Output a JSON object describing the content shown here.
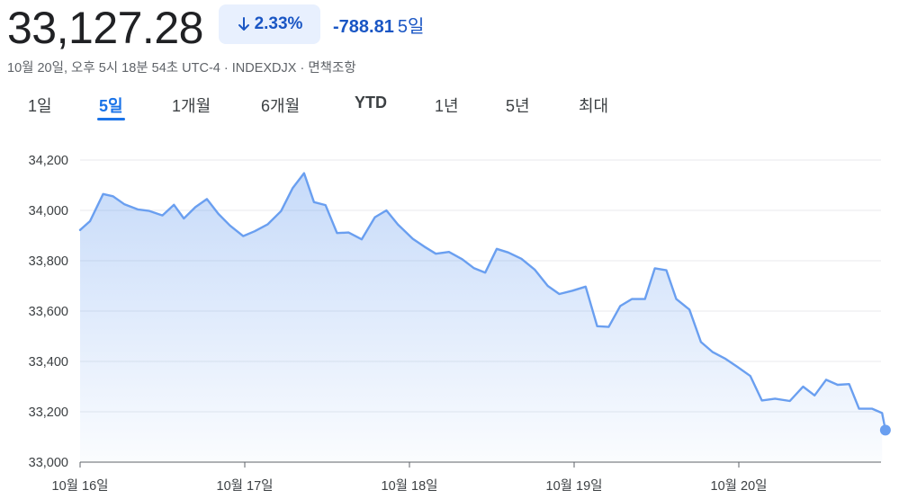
{
  "header": {
    "price": "33,127.28",
    "change_percent": "2.33%",
    "change_absolute": "-788.81",
    "change_period": "5일",
    "meta": "10월 20일, 오후 5시 18분 54초 UTC-4 · INDEXDJX · 면책조항",
    "accent_color": "#1a73e8",
    "negative_color": "#1a56c4"
  },
  "tabs": [
    {
      "label": "1일",
      "active": false
    },
    {
      "label": "5일",
      "active": true
    },
    {
      "label": "1개월",
      "active": false
    },
    {
      "label": "6개월",
      "active": false
    },
    {
      "label": "YTD",
      "active": false
    },
    {
      "label": "1년",
      "active": false
    },
    {
      "label": "5년",
      "active": false
    },
    {
      "label": "최대",
      "active": false
    }
  ],
  "chart_data": {
    "type": "area",
    "title": "",
    "xlabel": "",
    "ylabel": "",
    "ylim": [
      33000,
      34200
    ],
    "y_ticks": [
      34200,
      34000,
      33800,
      33600,
      33400,
      33200,
      33000
    ],
    "y_tick_labels": [
      "34,200",
      "34,000",
      "33,800",
      "33,600",
      "33,400",
      "33,200",
      "33,000"
    ],
    "x_ticks": [
      0,
      10,
      20,
      30,
      40
    ],
    "x_tick_labels": [
      "10월 16일",
      "10월 17일",
      "10월 18일",
      "10월 19일",
      "10월 20일"
    ],
    "xlim": [
      0,
      48.7
    ],
    "grid": true,
    "line_color": "#6a9ff0",
    "series": [
      {
        "values": [
          [
            0.0,
            33922
          ],
          [
            0.6,
            33957
          ],
          [
            1.4,
            34065
          ],
          [
            2.0,
            34056
          ],
          [
            2.7,
            34024
          ],
          [
            3.5,
            34004
          ],
          [
            4.2,
            33998
          ],
          [
            5.0,
            33980
          ],
          [
            5.7,
            34022
          ],
          [
            6.3,
            33968
          ],
          [
            7.0,
            34013
          ],
          [
            7.7,
            34045
          ],
          [
            8.4,
            33986
          ],
          [
            9.1,
            33940
          ],
          [
            9.9,
            33898
          ],
          [
            10.6,
            33917
          ],
          [
            11.4,
            33945
          ],
          [
            12.2,
            33997
          ],
          [
            12.9,
            34088
          ],
          [
            13.6,
            34148
          ],
          [
            14.2,
            34033
          ],
          [
            14.9,
            34021
          ],
          [
            15.6,
            33910
          ],
          [
            16.3,
            33912
          ],
          [
            17.1,
            33885
          ],
          [
            17.9,
            33973
          ],
          [
            18.6,
            34000
          ],
          [
            19.3,
            33944
          ],
          [
            20.2,
            33887
          ],
          [
            20.9,
            33856
          ],
          [
            21.6,
            33828
          ],
          [
            22.4,
            33835
          ],
          [
            23.2,
            33806
          ],
          [
            23.9,
            33771
          ],
          [
            24.6,
            33753
          ],
          [
            25.3,
            33847
          ],
          [
            26.0,
            33833
          ],
          [
            26.8,
            33808
          ],
          [
            27.6,
            33765
          ],
          [
            28.4,
            33700
          ],
          [
            29.1,
            33668
          ],
          [
            29.9,
            33681
          ],
          [
            30.7,
            33697
          ],
          [
            31.4,
            33540
          ],
          [
            32.1,
            33537
          ],
          [
            32.8,
            33620
          ],
          [
            33.5,
            33648
          ],
          [
            34.3,
            33648
          ],
          [
            34.9,
            33770
          ],
          [
            35.6,
            33762
          ],
          [
            36.2,
            33648
          ],
          [
            37.0,
            33606
          ],
          [
            37.7,
            33477
          ],
          [
            38.4,
            33438
          ],
          [
            39.2,
            33410
          ],
          [
            39.9,
            33379
          ],
          [
            40.7,
            33342
          ],
          [
            41.4,
            33245
          ],
          [
            42.2,
            33252
          ],
          [
            43.1,
            33243
          ],
          [
            43.9,
            33300
          ],
          [
            44.6,
            33265
          ],
          [
            45.3,
            33327
          ],
          [
            46.0,
            33307
          ],
          [
            46.7,
            33310
          ],
          [
            47.3,
            33212
          ],
          [
            48.1,
            33212
          ],
          [
            48.7,
            33195
          ]
        ]
      }
    ],
    "last_point": [
      48.9,
      33127.28
    ]
  }
}
